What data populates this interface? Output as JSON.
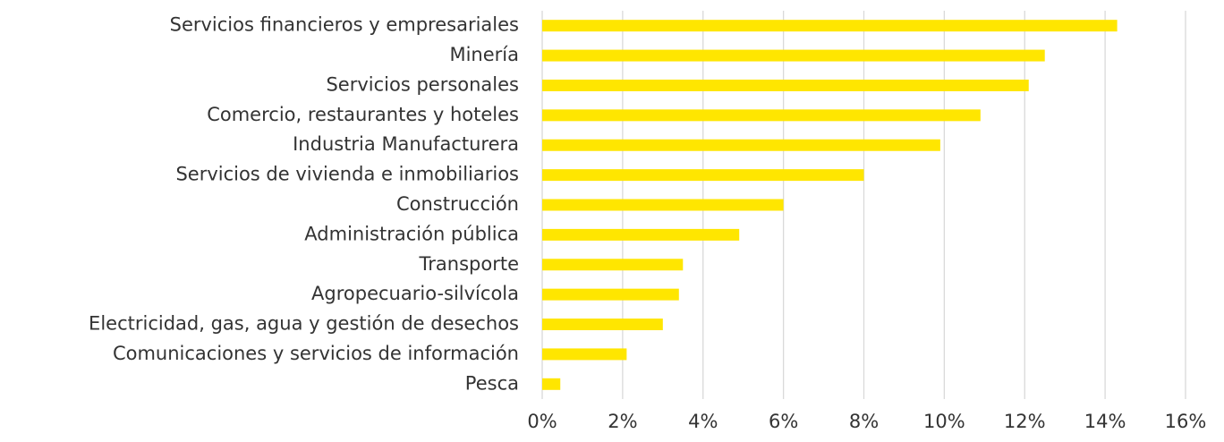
{
  "chart_data": {
    "type": "barh",
    "categories": [
      "Servicios financieros y empresariales",
      "Minería",
      "Servicios personales",
      "Comercio, restaurantes y hoteles",
      "Industria Manufacturera",
      "Servicios de vivienda e inmobiliarios",
      "Construcción",
      "Administración pública",
      "Transporte",
      "Agropecuario-silvícola",
      "Electricidad, gas, agua y gestión de desechos",
      "Comunicaciones y servicios de información",
      "Pesca"
    ],
    "values": [
      14.3,
      12.5,
      12.1,
      10.9,
      9.9,
      8.0,
      6.0,
      4.9,
      3.5,
      3.4,
      3.0,
      2.1,
      0.45
    ],
    "color": "#ffe600",
    "xlim": [
      0,
      16
    ],
    "xticks": [
      {
        "value": 0,
        "label": "0%"
      },
      {
        "value": 2,
        "label": "2%"
      },
      {
        "value": 4,
        "label": "4%"
      },
      {
        "value": 6,
        "label": "6%"
      },
      {
        "value": 8,
        "label": "8%"
      },
      {
        "value": 10,
        "label": "10%"
      },
      {
        "value": 12,
        "label": "12%"
      },
      {
        "value": 14,
        "label": "14%"
      },
      {
        "value": 16,
        "label": "16%"
      }
    ],
    "grid": true
  }
}
